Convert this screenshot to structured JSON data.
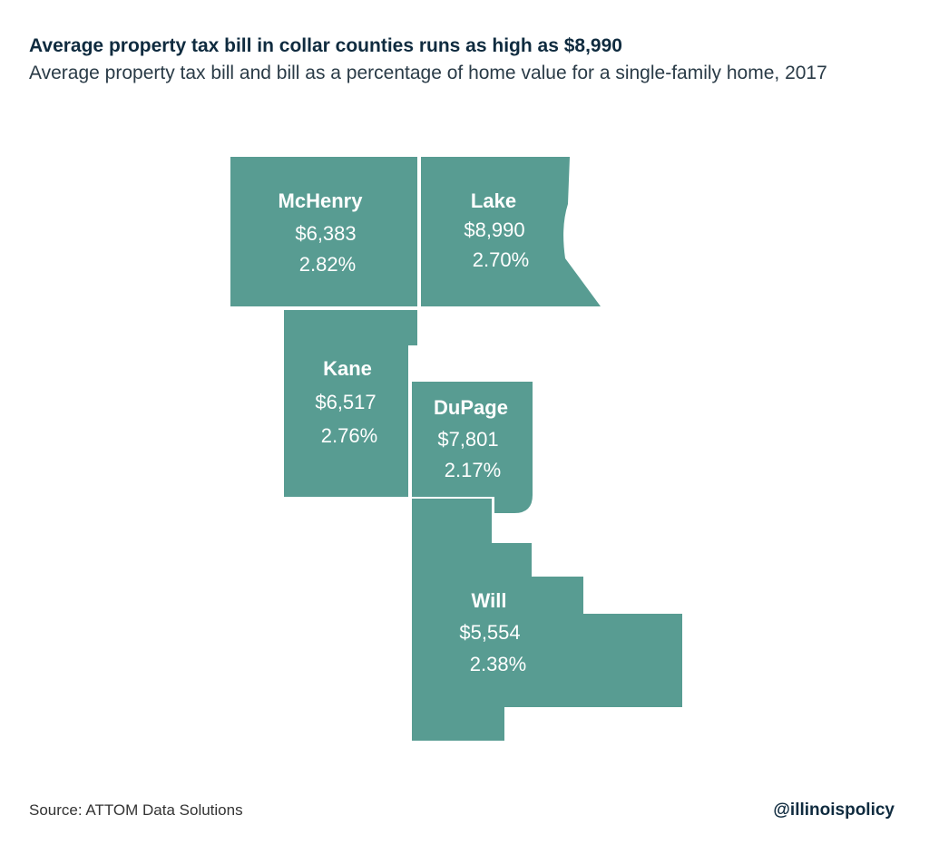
{
  "title": "Average property tax bill in collar counties runs as high as $8,990",
  "subtitle": "Average property tax bill and bill as a percentage of home value for a single-family home, 2017",
  "fill_color": "#589c92",
  "counties": [
    {
      "name": "McHenry",
      "bill": "$6,383",
      "pct": "2.82%"
    },
    {
      "name": "Lake",
      "bill": "$8,990",
      "pct": "2.70%"
    },
    {
      "name": "Kane",
      "bill": "$6,517",
      "pct": "2.76%"
    },
    {
      "name": "DuPage",
      "bill": "$7,801",
      "pct": "2.17%"
    },
    {
      "name": "Will",
      "bill": "$5,554",
      "pct": "2.38%"
    }
  ],
  "source": "Source: ATTOM Data Solutions",
  "handle": "@illinoispolicy"
}
